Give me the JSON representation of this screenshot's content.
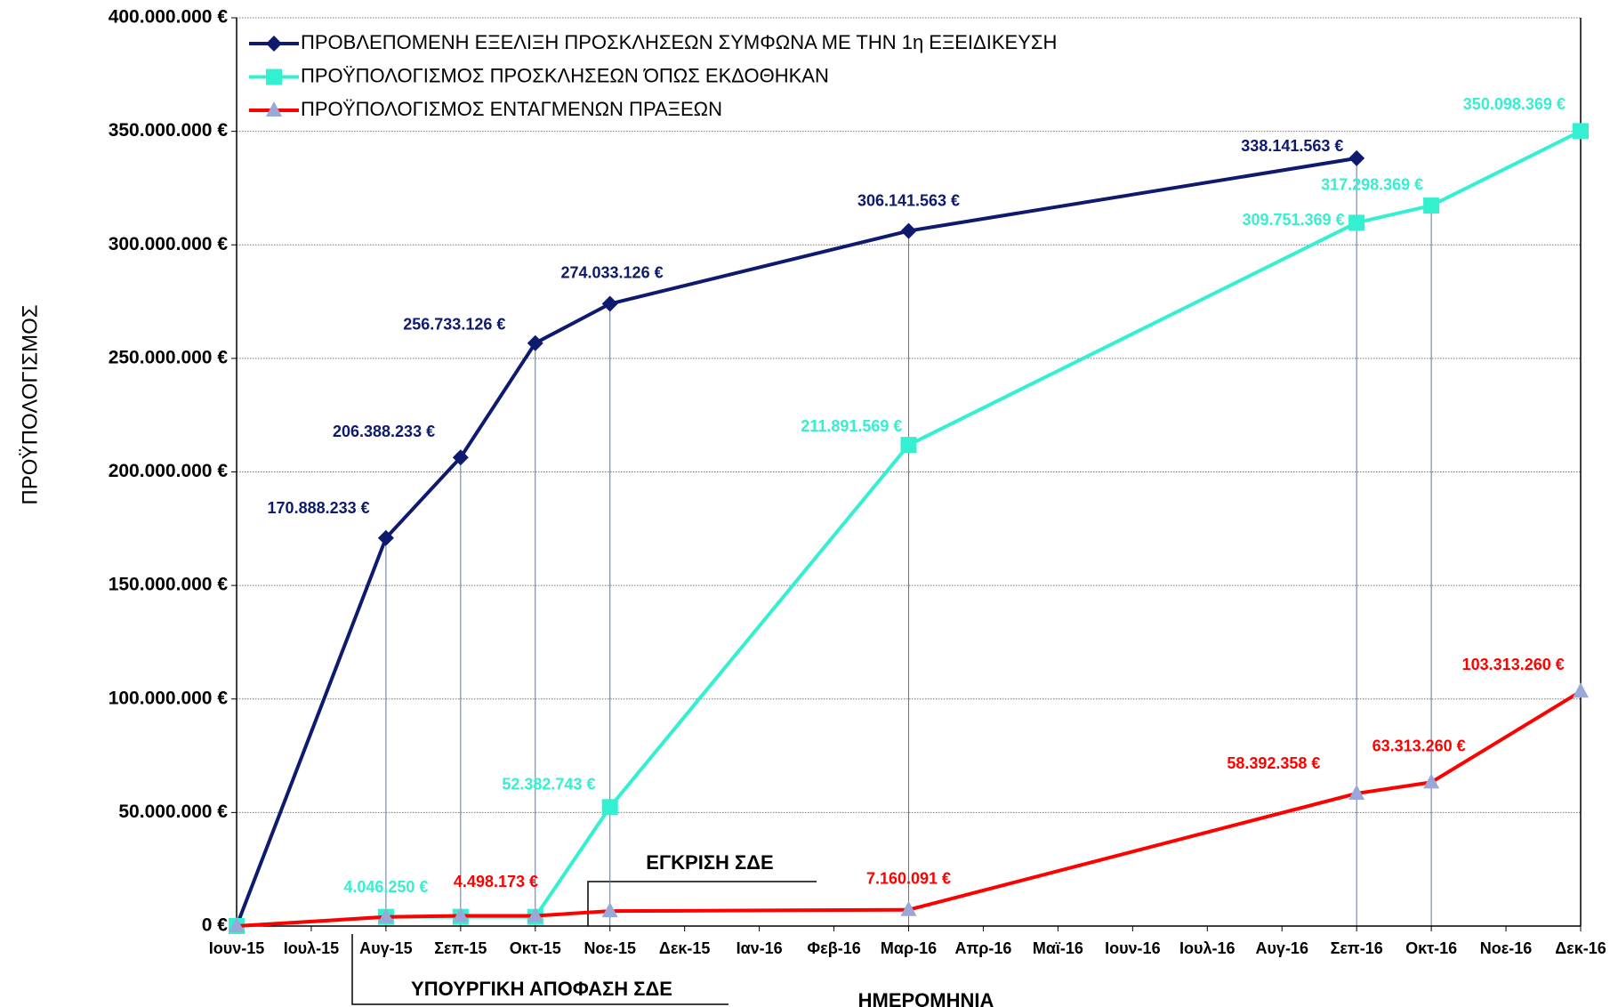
{
  "chart_data": {
    "type": "line",
    "y_label": "ΠΡΟΫΠΟΛΟΓΙΣΜΟΣ",
    "x_label": "ΗΜΕΡΟΜΗΝΙΑ",
    "categories": [
      "Ιουν-15",
      "Ιουλ-15",
      "Αυγ-15",
      "Σεπ-15",
      "Οκτ-15",
      "Νοε-15",
      "Δεκ-15",
      "Ιαν-16",
      "Φεβ-16",
      "Μαρ-16",
      "Απρ-16",
      "Μαϊ-16",
      "Ιουν-16",
      "Ιουλ-16",
      "Αυγ-16",
      "Σεπ-16",
      "Οκτ-16",
      "Νοε-16",
      "Δεκ-16"
    ],
    "series": [
      {
        "name": "ΠΡΟΒΛΕΠΟΜΕΝΗ ΕΞΕΛΙΞΗ ΠΡΟΣΚΛΗΣΕΩΝ ΣΥΜΦΩΝΑ ΜΕ ΤΗΝ 1η ΕΞΕΙΔΙΚΕΥΣΗ",
        "color": "#0e1a6e",
        "marker": "diamond",
        "marker_color": "#0e1a6e",
        "x": [
          "Ιουν-15",
          "Αυγ-15",
          "Σεπ-15",
          "Οκτ-15",
          "Νοε-15",
          "Μαρ-16",
          "Σεπ-16"
        ],
        "values": [
          0,
          170888233,
          206388233,
          256733126,
          274033126,
          306141563,
          338141563
        ],
        "value_labels": [
          null,
          "170.888.233 €",
          "206.388.233 €",
          "256.733.126 €",
          "274.033.126 €",
          "306.141.563 €",
          "338.141.563 €"
        ]
      },
      {
        "name": "ΠΡΟΫΠΟΛΟΓΙΣΜΟΣ ΠΡΟΣΚΛΗΣΕΩΝ ΌΠΩΣ ΕΚΔΟΘΗΚΑΝ",
        "color": "#33f0d0",
        "marker": "square",
        "marker_color": "#33f0d0",
        "x": [
          "Ιουν-15",
          "Αυγ-15",
          "Σεπ-15",
          "Οκτ-15",
          "Νοε-15",
          "Μαρ-16",
          "Σεπ-16",
          "Οκτ-16",
          "Δεκ-16"
        ],
        "values": [
          0,
          4046250,
          4046250,
          4046250,
          52382743,
          211891569,
          309751369,
          317298369,
          350098369
        ],
        "value_labels": [
          null,
          "4.046.250 €",
          null,
          null,
          "52.382.743 €",
          "211.891.569 €",
          "309.751.369 €",
          "317.298.369 €",
          "350.098.369 €"
        ]
      },
      {
        "name": "ΠΡΟΫΠΟΛΟΓΙΣΜΟΣ ΕΝΤΑΓΜΕΝΩΝ ΠΡΑΞΕΩΝ",
        "color": "#ff0000",
        "marker": "triangle",
        "marker_color": "#9aa8d8",
        "x": [
          "Ιουν-15",
          "Αυγ-15",
          "Σεπ-15",
          "Οκτ-15",
          "Νοε-15",
          "Μαρ-16",
          "Σεπ-16",
          "Οκτ-16",
          "Δεκ-16"
        ],
        "values": [
          0,
          4000000,
          4498173,
          4498173,
          6600000,
          7160091,
          58392358,
          63313260,
          103313260
        ],
        "value_labels": [
          null,
          null,
          "4.498.173 €",
          null,
          null,
          "7.160.091 €",
          "58.392.358 €",
          "63.313.260 €",
          "103.313.260 €"
        ]
      }
    ],
    "annotations": [
      "ΕΓΚΡΙΣΗ ΣΔΕ",
      "ΥΠΟΥΡΓΙΚΗ ΑΠΟΦΑΣΗ ΣΔΕ"
    ],
    "ylim": [
      0,
      400000000
    ],
    "yticks": [
      {
        "value": 0,
        "label": "0 €"
      },
      {
        "value": 50000000,
        "label": "50.000.000 €"
      },
      {
        "value": 100000000,
        "label": "100.000.000 €"
      },
      {
        "value": 150000000,
        "label": "150.000.000 €"
      },
      {
        "value": 200000000,
        "label": "200.000.000 €"
      },
      {
        "value": 250000000,
        "label": "250.000.000 €"
      },
      {
        "value": 300000000,
        "label": "300.000.000 €"
      },
      {
        "value": 350000000,
        "label": "350.000.000 €"
      },
      {
        "value": 400000000,
        "label": "400.000.000 €"
      }
    ],
    "grid": true,
    "legend": "top-left"
  }
}
